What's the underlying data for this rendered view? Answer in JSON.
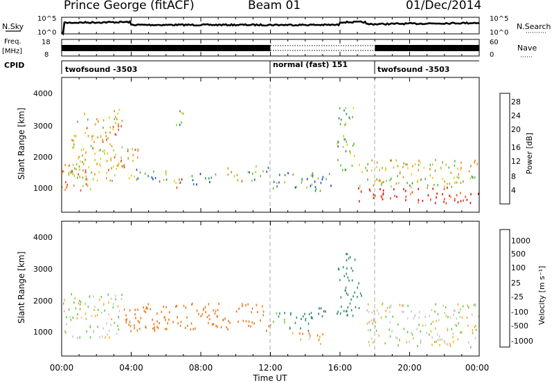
{
  "header": {
    "station": "Prince George (fitACF)",
    "beam": "Beam 01",
    "date": "01/Dec/2014"
  },
  "top_panels": {
    "nsky_label": "N.Sky",
    "nsky_ticks": [
      "10^5",
      "10^0"
    ],
    "nsearch_label": "N.Search",
    "nsearch_ticks": [
      "10^5",
      "10^0"
    ],
    "freq_label": "Freq.",
    "freq_unit": "[MHz]",
    "freq_ticks": [
      "18",
      "8"
    ],
    "nave_label": "Nave",
    "nave_ticks": [
      "60",
      "0"
    ],
    "cpid_label": "CPID",
    "cpid_segments": [
      {
        "label": "twofsound -3503",
        "start": "00:00",
        "end": "12:00"
      },
      {
        "label": "normal (fast) 151",
        "start": "12:00",
        "end": "18:00"
      },
      {
        "label": "twofsound -3503",
        "start": "18:00",
        "end": "24:00"
      }
    ]
  },
  "power_panel": {
    "ylabel": "Slant Range [km]",
    "yticks": [
      "4000",
      "3000",
      "2000",
      "1000"
    ],
    "colorbar_label": "Power [dB]",
    "colorbar_ticks": [
      "28",
      "24",
      "20",
      "16",
      "12",
      "8",
      "4"
    ],
    "colors": [
      "#1e2ee6",
      "#1f5fb8",
      "#2e8f6a",
      "#5fb83a",
      "#a8d028",
      "#f2c81a",
      "#f08a18",
      "#e84a12",
      "#e01010"
    ]
  },
  "velocity_panel": {
    "ylabel": "Slant Range [km]",
    "yticks": [
      "4000",
      "3000",
      "2000",
      "1000"
    ],
    "colorbar_label": "Velocity [m s⁻¹]",
    "colorbar_ticks": [
      "1000",
      "500",
      "100",
      "25",
      "-25",
      "-100",
      "-500",
      "-1000"
    ],
    "colors": [
      "#1f3fbf",
      "#2e6fa0",
      "#2e8f6a",
      "#5fd040",
      "#c8c8c8",
      "#f2b030",
      "#f07818",
      "#e83010",
      "#e00000"
    ]
  },
  "x_axis": {
    "label": "Time UT",
    "ticks": [
      "00:00",
      "04:00",
      "08:00",
      "12:00",
      "16:00",
      "20:00",
      "00:00"
    ]
  },
  "chart_data": [
    {
      "type": "line",
      "title": "N.Sky / N.Search",
      "x_range": [
        "00:00",
        "24:00"
      ],
      "description_series": [
        {
          "name": "N.Sky",
          "x": [
            "00:00",
            "00:10",
            "04:00",
            "06:00",
            "12:00",
            "16:30",
            "20:00",
            "24:00"
          ],
          "values": [
            1,
            3000,
            6000,
            2000,
            2000,
            9000,
            3000,
            5000
          ]
        }
      ]
    },
    {
      "type": "line",
      "title": "Freq. / Nave",
      "series": [
        {
          "name": "Freq. [MHz]",
          "x": [
            "00:00",
            "12:00",
            "12:00",
            "18:00",
            "18:00",
            "24:00"
          ],
          "values": [
            11,
            11,
            10.5,
            10.5,
            11,
            11
          ]
        }
      ]
    },
    {
      "type": "heatmap",
      "title": "Power [dB]",
      "xlabel": "Time UT",
      "ylabel": "Slant Range [km]",
      "ylim": [
        180,
        4500
      ],
      "color_range": [
        0,
        30
      ],
      "regions": [
        {
          "t_start": 0.0,
          "t_end": 1.7,
          "range_start": 900,
          "range_end": 1800,
          "power": 20
        },
        {
          "t_start": 0.5,
          "t_end": 3.5,
          "range_start": 1200,
          "range_end": 3500,
          "power": 18
        },
        {
          "t_start": 3.0,
          "t_end": 4.4,
          "range_start": 1300,
          "range_end": 2300,
          "power": 20
        },
        {
          "t_start": 4.2,
          "t_end": 6.8,
          "range_start": 1200,
          "range_end": 1600,
          "power": 10
        },
        {
          "t_start": 6.2,
          "t_end": 6.9,
          "range_start": 1000,
          "range_end": 1400,
          "power": 24
        },
        {
          "t_start": 6.5,
          "t_end": 7.2,
          "range_start": 3000,
          "range_end": 3500,
          "power": 10
        },
        {
          "t_start": 7.4,
          "t_end": 9.0,
          "range_start": 1100,
          "range_end": 1500,
          "power": 6
        },
        {
          "t_start": 9.5,
          "t_end": 10.4,
          "range_start": 1200,
          "range_end": 1700,
          "power": 18
        },
        {
          "t_start": 10.6,
          "t_end": 11.9,
          "range_start": 1200,
          "range_end": 1700,
          "power": 10
        },
        {
          "t_start": 12.0,
          "t_end": 15.5,
          "range_start": 900,
          "range_end": 1500,
          "power": 8
        },
        {
          "t_start": 15.8,
          "t_end": 16.8,
          "range_start": 1500,
          "range_end": 3600,
          "power": 12
        },
        {
          "t_start": 17.0,
          "t_end": 24.0,
          "range_start": 500,
          "range_end": 1000,
          "power": 28
        },
        {
          "t_start": 17.0,
          "t_end": 24.0,
          "range_start": 1000,
          "range_end": 1900,
          "power": 16
        }
      ]
    },
    {
      "type": "heatmap",
      "title": "Velocity [m s-1]",
      "xlabel": "Time UT",
      "ylabel": "Slant Range [km]",
      "ylim": [
        180,
        4500
      ],
      "color_range": [
        -1000,
        1000
      ],
      "regions": [
        {
          "t_start": 0.0,
          "t_end": 3.5,
          "range_start": 800,
          "range_end": 2200,
          "velocity": 0
        },
        {
          "t_start": 3.5,
          "t_end": 12.0,
          "range_start": 1000,
          "range_end": 1900,
          "velocity": -150
        },
        {
          "t_start": 12.0,
          "t_end": 14.5,
          "range_start": 1000,
          "range_end": 1600,
          "velocity": 100
        },
        {
          "t_start": 14.2,
          "t_end": 15.3,
          "range_start": 1400,
          "range_end": 1800,
          "velocity": 300
        },
        {
          "t_start": 13.2,
          "t_end": 15.0,
          "range_start": 600,
          "range_end": 1000,
          "velocity": -80
        },
        {
          "t_start": 15.8,
          "t_end": 17.2,
          "range_start": 1500,
          "range_end": 3500,
          "velocity": 150
        },
        {
          "t_start": 17.5,
          "t_end": 24.0,
          "range_start": 500,
          "range_end": 1900,
          "velocity": 0
        }
      ]
    }
  ]
}
